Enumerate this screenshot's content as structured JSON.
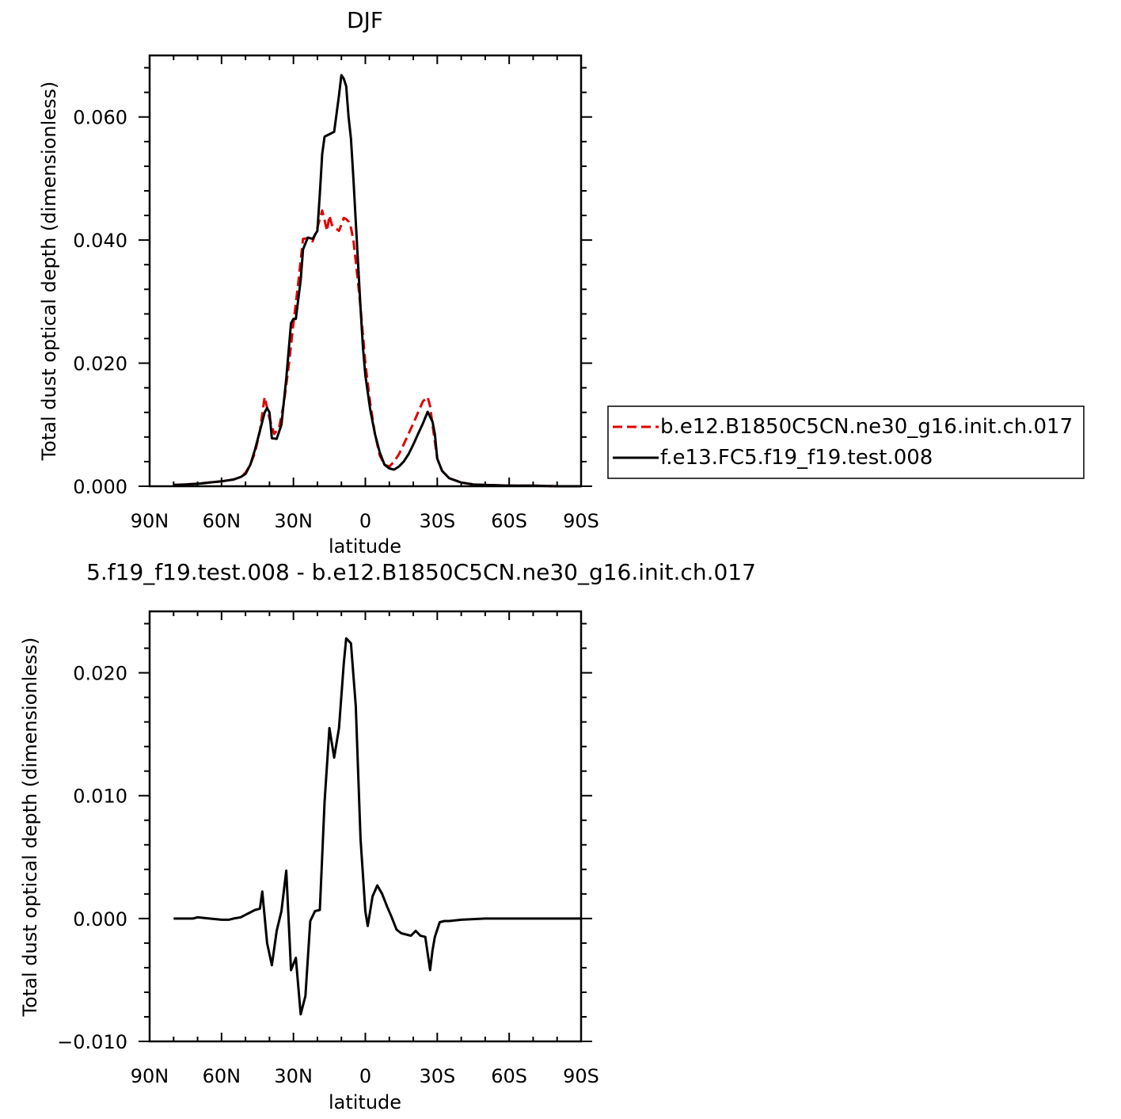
{
  "chart_data": [
    {
      "type": "line",
      "title": "DJF",
      "xlabel": "latitude",
      "ylabel": "Total dust optical depth (dimensionless)",
      "xlim": [
        90,
        -90
      ],
      "ylim": [
        0,
        0.07
      ],
      "xticks": [
        90,
        60,
        30,
        0,
        -30,
        -60,
        -90
      ],
      "xtick_labels": [
        "90N",
        "60N",
        "30N",
        "0",
        "30S",
        "60S",
        "90S"
      ],
      "yticks": [
        0,
        0.02,
        0.04,
        0.06
      ],
      "ytick_labels": [
        "0.000",
        "0.020",
        "0.040",
        "0.060"
      ],
      "grid": false,
      "legend": {
        "placement": "right",
        "entries": [
          "b.e12.B1850C5CN.ne30_g16.init.ch.017",
          "f.e13.FC5.f19_f19.test.008"
        ]
      },
      "series": [
        {
          "name": "b.e12.B1850C5CN.ne30_g16.init.ch.017",
          "color": "#e00000",
          "dash": "dashed",
          "x": [
            80,
            75,
            70,
            65,
            60,
            55,
            52,
            50,
            48,
            46,
            44,
            42,
            40,
            38,
            36,
            34,
            32,
            30,
            28,
            26,
            24,
            22,
            20,
            18,
            17,
            16,
            15,
            14,
            13,
            12,
            11,
            10,
            9,
            8,
            7,
            6,
            5,
            4,
            3,
            2,
            1,
            0,
            -2,
            -4,
            -6,
            -8,
            -10,
            -12,
            -14,
            -16,
            -18,
            -20,
            -22,
            -24,
            -26,
            -27,
            -28,
            -30,
            -32,
            -35,
            -40,
            -45,
            -50,
            -60,
            -70,
            -80,
            -90
          ],
          "y": [
            0.0002,
            0.0003,
            0.0004,
            0.0006,
            0.0008,
            0.0011,
            0.0015,
            0.0022,
            0.0035,
            0.0055,
            0.009,
            0.0145,
            0.011,
            0.0085,
            0.0095,
            0.0135,
            0.0195,
            0.0265,
            0.033,
            0.0402,
            0.0403,
            0.0398,
            0.042,
            0.0448,
            0.0432,
            0.0415,
            0.044,
            0.0425,
            0.042,
            0.0418,
            0.0415,
            0.0425,
            0.0436,
            0.0434,
            0.043,
            0.042,
            0.04,
            0.0365,
            0.033,
            0.029,
            0.0245,
            0.02,
            0.0135,
            0.0085,
            0.005,
            0.0035,
            0.0032,
            0.004,
            0.0052,
            0.0068,
            0.0085,
            0.0102,
            0.012,
            0.0138,
            0.0145,
            0.013,
            0.01,
            0.0045,
            0.0025,
            0.0013,
            0.0006,
            0.0003,
            0.0002,
            0.0001,
            0.0001,
            0.0,
            0.0
          ]
        },
        {
          "name": "f.e13.FC5.f19_f19.test.008",
          "color": "#000000",
          "dash": "solid",
          "x": [
            80,
            75,
            70,
            65,
            60,
            55,
            52,
            50,
            48,
            46,
            44,
            42,
            41,
            40,
            39,
            37,
            35,
            33,
            31,
            30,
            29,
            27,
            26,
            24,
            22,
            20,
            19,
            18,
            17,
            15,
            13,
            11,
            10,
            9,
            8,
            7,
            6,
            5,
            4,
            3,
            2,
            1,
            0,
            -2,
            -4,
            -6,
            -8,
            -10,
            -12,
            -14,
            -16,
            -18,
            -20,
            -22,
            -24,
            -26,
            -28,
            -29,
            -30,
            -32,
            -35,
            -40,
            -45,
            -50,
            -60,
            -70,
            -80,
            -90
          ],
          "y": [
            0.0002,
            0.0003,
            0.0004,
            0.0006,
            0.0008,
            0.0011,
            0.0015,
            0.002,
            0.0035,
            0.006,
            0.009,
            0.012,
            0.0127,
            0.012,
            0.0078,
            0.0077,
            0.01,
            0.0175,
            0.0265,
            0.0272,
            0.0272,
            0.0335,
            0.0385,
            0.0404,
            0.0402,
            0.0415,
            0.0475,
            0.054,
            0.0568,
            0.0572,
            0.0576,
            0.0635,
            0.0668,
            0.0662,
            0.065,
            0.06,
            0.0565,
            0.05,
            0.043,
            0.036,
            0.029,
            0.0225,
            0.018,
            0.0125,
            0.0085,
            0.0055,
            0.0035,
            0.0029,
            0.0027,
            0.0032,
            0.004,
            0.0052,
            0.0068,
            0.0085,
            0.0102,
            0.0121,
            0.0105,
            0.0085,
            0.0045,
            0.0025,
            0.0013,
            0.0006,
            0.0003,
            0.0002,
            0.0001,
            0.0001,
            0.0,
            0.0
          ]
        }
      ]
    },
    {
      "type": "line",
      "title": "5.f19_f19.test.008 - b.e12.B1850C5CN.ne30_g16.init.ch.017",
      "xlabel": "latitude",
      "ylabel": "Total dust optical depth (dimensionless)",
      "xlim": [
        90,
        -90
      ],
      "ylim": [
        -0.01,
        0.025
      ],
      "xticks": [
        90,
        60,
        30,
        0,
        -30,
        -60,
        -90
      ],
      "xtick_labels": [
        "90N",
        "60N",
        "30N",
        "0",
        "30S",
        "60S",
        "90S"
      ],
      "yticks": [
        -0.01,
        0,
        0.01,
        0.02
      ],
      "ytick_labels": [
        "−0.010",
        "0.000",
        "0.010",
        "0.020"
      ],
      "grid": false,
      "series": [
        {
          "color": "#000000",
          "dash": "solid",
          "x": [
            80,
            75,
            72,
            70,
            65,
            60,
            57,
            55,
            52,
            50,
            46,
            44,
            43,
            41,
            39,
            37,
            35,
            33,
            31,
            29,
            27,
            25,
            23,
            21,
            19,
            17,
            15,
            13,
            11,
            9,
            8,
            6,
            4,
            2,
            0,
            -1,
            -3,
            -5,
            -7,
            -9,
            -11,
            -13,
            -15,
            -17,
            -19,
            -20,
            -21,
            -23,
            -25,
            -27,
            -28,
            -29,
            -31,
            -33,
            -35,
            -40,
            -50,
            -60,
            -70,
            -80,
            -90
          ],
          "y": [
            0.0,
            0.0,
            0.0,
            0.0001,
            0.0,
            -0.0001,
            -0.0001,
            0.0,
            0.0001,
            0.0003,
            0.0007,
            0.0008,
            0.0022,
            -0.002,
            -0.0038,
            -0.001,
            0.0006,
            0.0039,
            -0.0042,
            -0.0032,
            -0.0078,
            -0.0063,
            -0.0002,
            0.0006,
            0.0007,
            0.0095,
            0.0155,
            0.0131,
            0.0155,
            0.0208,
            0.0228,
            0.0224,
            0.0173,
            0.0065,
            0.0006,
            -0.0006,
            0.0018,
            0.0027,
            0.002,
            0.001,
            0.0001,
            -0.0009,
            -0.0012,
            -0.0013,
            -0.0014,
            -0.0012,
            -0.001,
            -0.0014,
            -0.0015,
            -0.0042,
            -0.0026,
            -0.0015,
            -0.0003,
            -0.0002,
            -0.0002,
            -0.0001,
            0.0,
            0.0,
            0.0,
            0.0,
            0.0
          ]
        }
      ]
    }
  ]
}
